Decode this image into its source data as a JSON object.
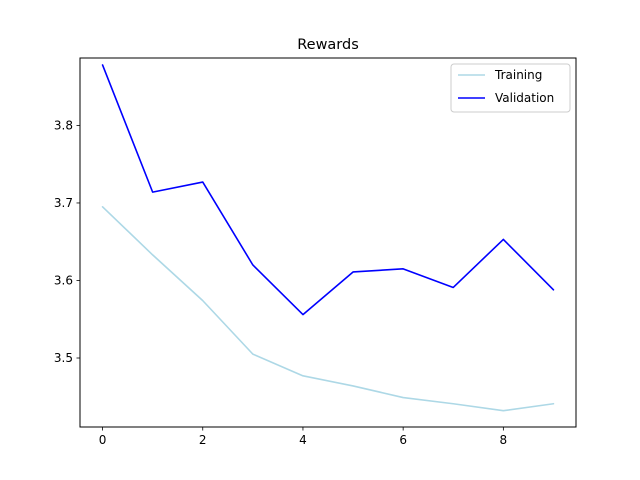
{
  "chart_data": {
    "type": "line",
    "title": "Rewards",
    "xlabel": "",
    "ylabel": "",
    "x": [
      0,
      1,
      2,
      3,
      4,
      5,
      6,
      7,
      8,
      9
    ],
    "xticks": [
      0,
      2,
      4,
      6,
      8
    ],
    "yticks": [
      3.5,
      3.6,
      3.7,
      3.8
    ],
    "xlim": [
      -0.45,
      9.45
    ],
    "ylim": [
      3.411,
      3.887
    ],
    "grid": false,
    "legend_position": "top-right",
    "series": [
      {
        "name": "Training",
        "color": "#add8e6",
        "values": [
          3.695,
          3.633,
          3.574,
          3.505,
          3.477,
          3.464,
          3.449,
          3.441,
          3.432,
          3.441
        ]
      },
      {
        "name": "Validation",
        "color": "#0000ff",
        "values": [
          3.878,
          3.714,
          3.727,
          3.62,
          3.556,
          3.611,
          3.615,
          3.591,
          3.653,
          3.588
        ]
      }
    ]
  }
}
